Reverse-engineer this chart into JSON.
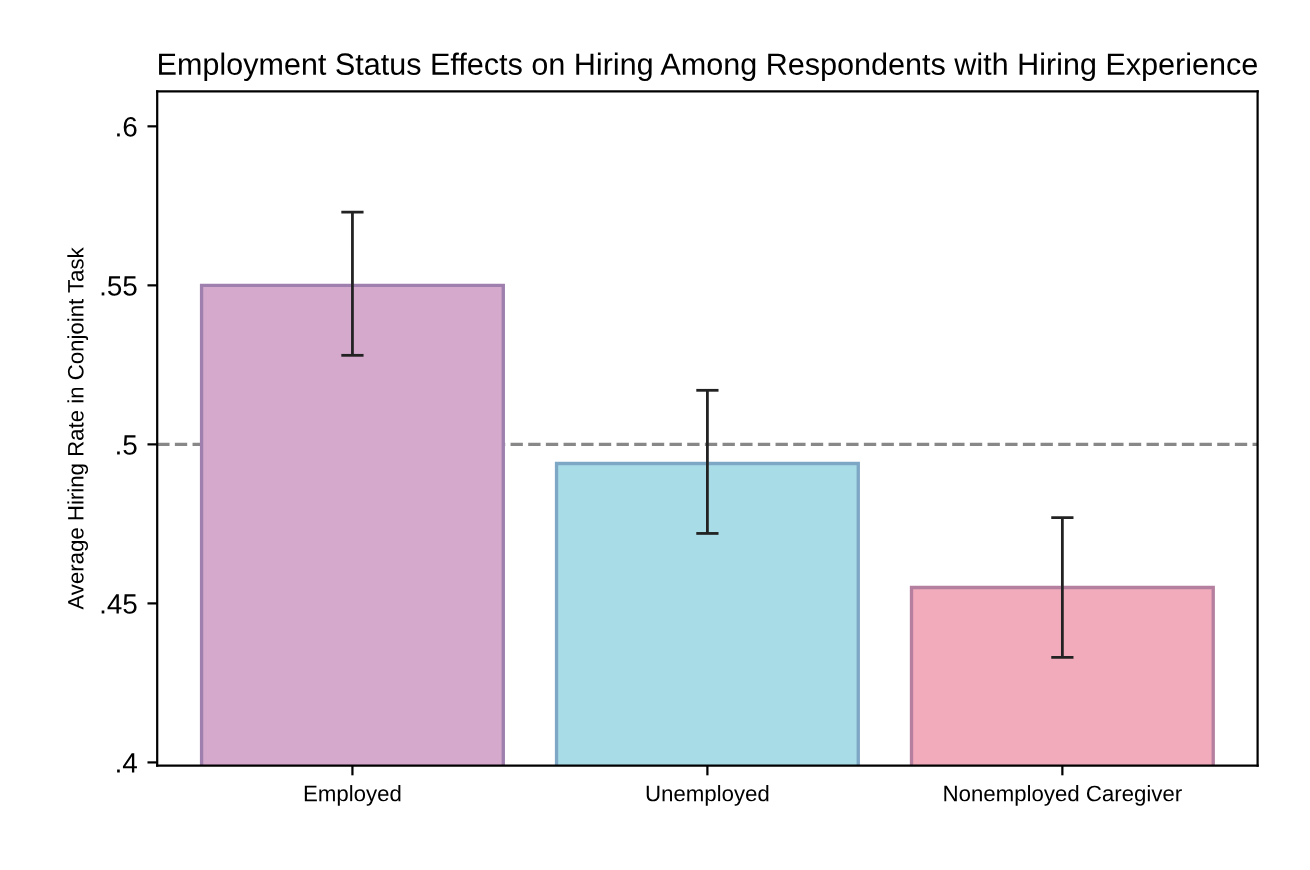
{
  "chart_data": {
    "type": "bar",
    "title": "Employment Status Effects on Hiring Among Respondents with Hiring Experience",
    "ylabel": "Average Hiring Rate in Conjoint Task",
    "categories": [
      "Employed",
      "Unemployed",
      "Nonemployed Caregiver"
    ],
    "values": [
      0.55,
      0.494,
      0.455
    ],
    "colors": [
      "#d4a9cc",
      "#a8dde8",
      "#f2abbb"
    ],
    "errors": [
      [
        0.528,
        0.573
      ],
      [
        0.472,
        0.517
      ],
      [
        0.433,
        0.477
      ]
    ],
    "ylim": [
      0.399,
      0.611
    ],
    "yticks": [
      {
        "value": 0.4,
        "label": ".4"
      },
      {
        "value": 0.45,
        "label": ".45"
      },
      {
        "value": 0.5,
        "label": ".5"
      },
      {
        "value": 0.55,
        "label": ".55"
      },
      {
        "value": 0.6,
        "label": ".6"
      }
    ],
    "ref_lines": [
      {
        "axis": "y",
        "value": 0.5,
        "color": "#888888",
        "line_style": "dashed"
      }
    ],
    "grid": false,
    "legend": false
  }
}
